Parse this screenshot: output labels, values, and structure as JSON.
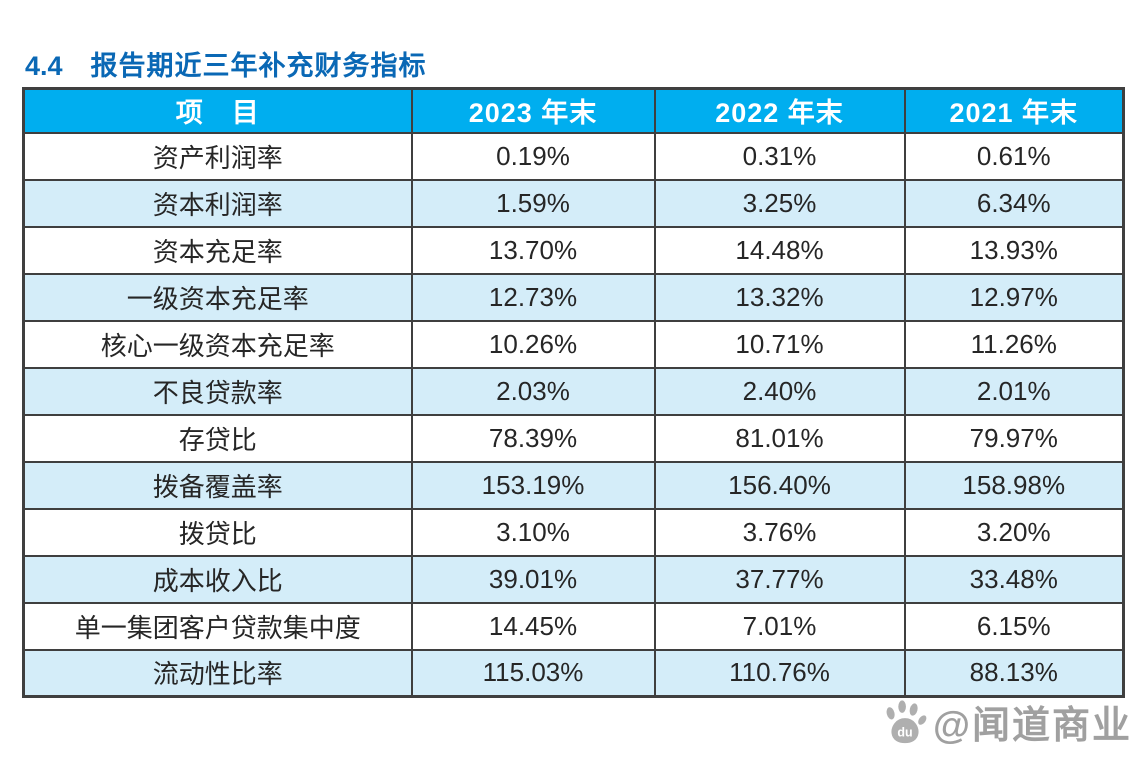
{
  "title": {
    "number": "4.4",
    "text": "报告期近三年补充财务指标"
  },
  "table": {
    "columns": [
      "项　目",
      "2023 年末",
      "2022 年末",
      "2021 年末"
    ],
    "rows": [
      {
        "label": "资产利润率",
        "values": [
          "0.19%",
          "0.31%",
          "0.61%"
        ]
      },
      {
        "label": "资本利润率",
        "values": [
          "1.59%",
          "3.25%",
          "6.34%"
        ]
      },
      {
        "label": "资本充足率",
        "values": [
          "13.70%",
          "14.48%",
          "13.93%"
        ]
      },
      {
        "label": "一级资本充足率",
        "values": [
          "12.73%",
          "13.32%",
          "12.97%"
        ]
      },
      {
        "label": "核心一级资本充足率",
        "values": [
          "10.26%",
          "10.71%",
          "11.26%"
        ]
      },
      {
        "label": "不良贷款率",
        "values": [
          "2.03%",
          "2.40%",
          "2.01%"
        ]
      },
      {
        "label": "存贷比",
        "values": [
          "78.39%",
          "81.01%",
          "79.97%"
        ]
      },
      {
        "label": "拨备覆盖率",
        "values": [
          "153.19%",
          "156.40%",
          "158.98%"
        ]
      },
      {
        "label": "拨贷比",
        "values": [
          "3.10%",
          "3.76%",
          "3.20%"
        ]
      },
      {
        "label": "成本收入比",
        "values": [
          "39.01%",
          "37.77%",
          "33.48%"
        ]
      },
      {
        "label": "单一集团客户贷款集中度",
        "values": [
          "14.45%",
          "7.01%",
          "6.15%"
        ]
      },
      {
        "label": "流动性比率",
        "values": [
          "115.03%",
          "110.76%",
          "88.13%"
        ]
      }
    ]
  },
  "watermark": {
    "text": "@闻道商业",
    "icon": "baidu-paw-icon",
    "icon_label": "du"
  },
  "colors": {
    "title_blue": "#0a68b5",
    "header_bg": "#00aeef",
    "header_text": "#ffffff",
    "alt_row_bg": "#d4edf9",
    "border": "#3f3f3f",
    "cell_text": "#262626",
    "watermark_gray": "#989898"
  }
}
